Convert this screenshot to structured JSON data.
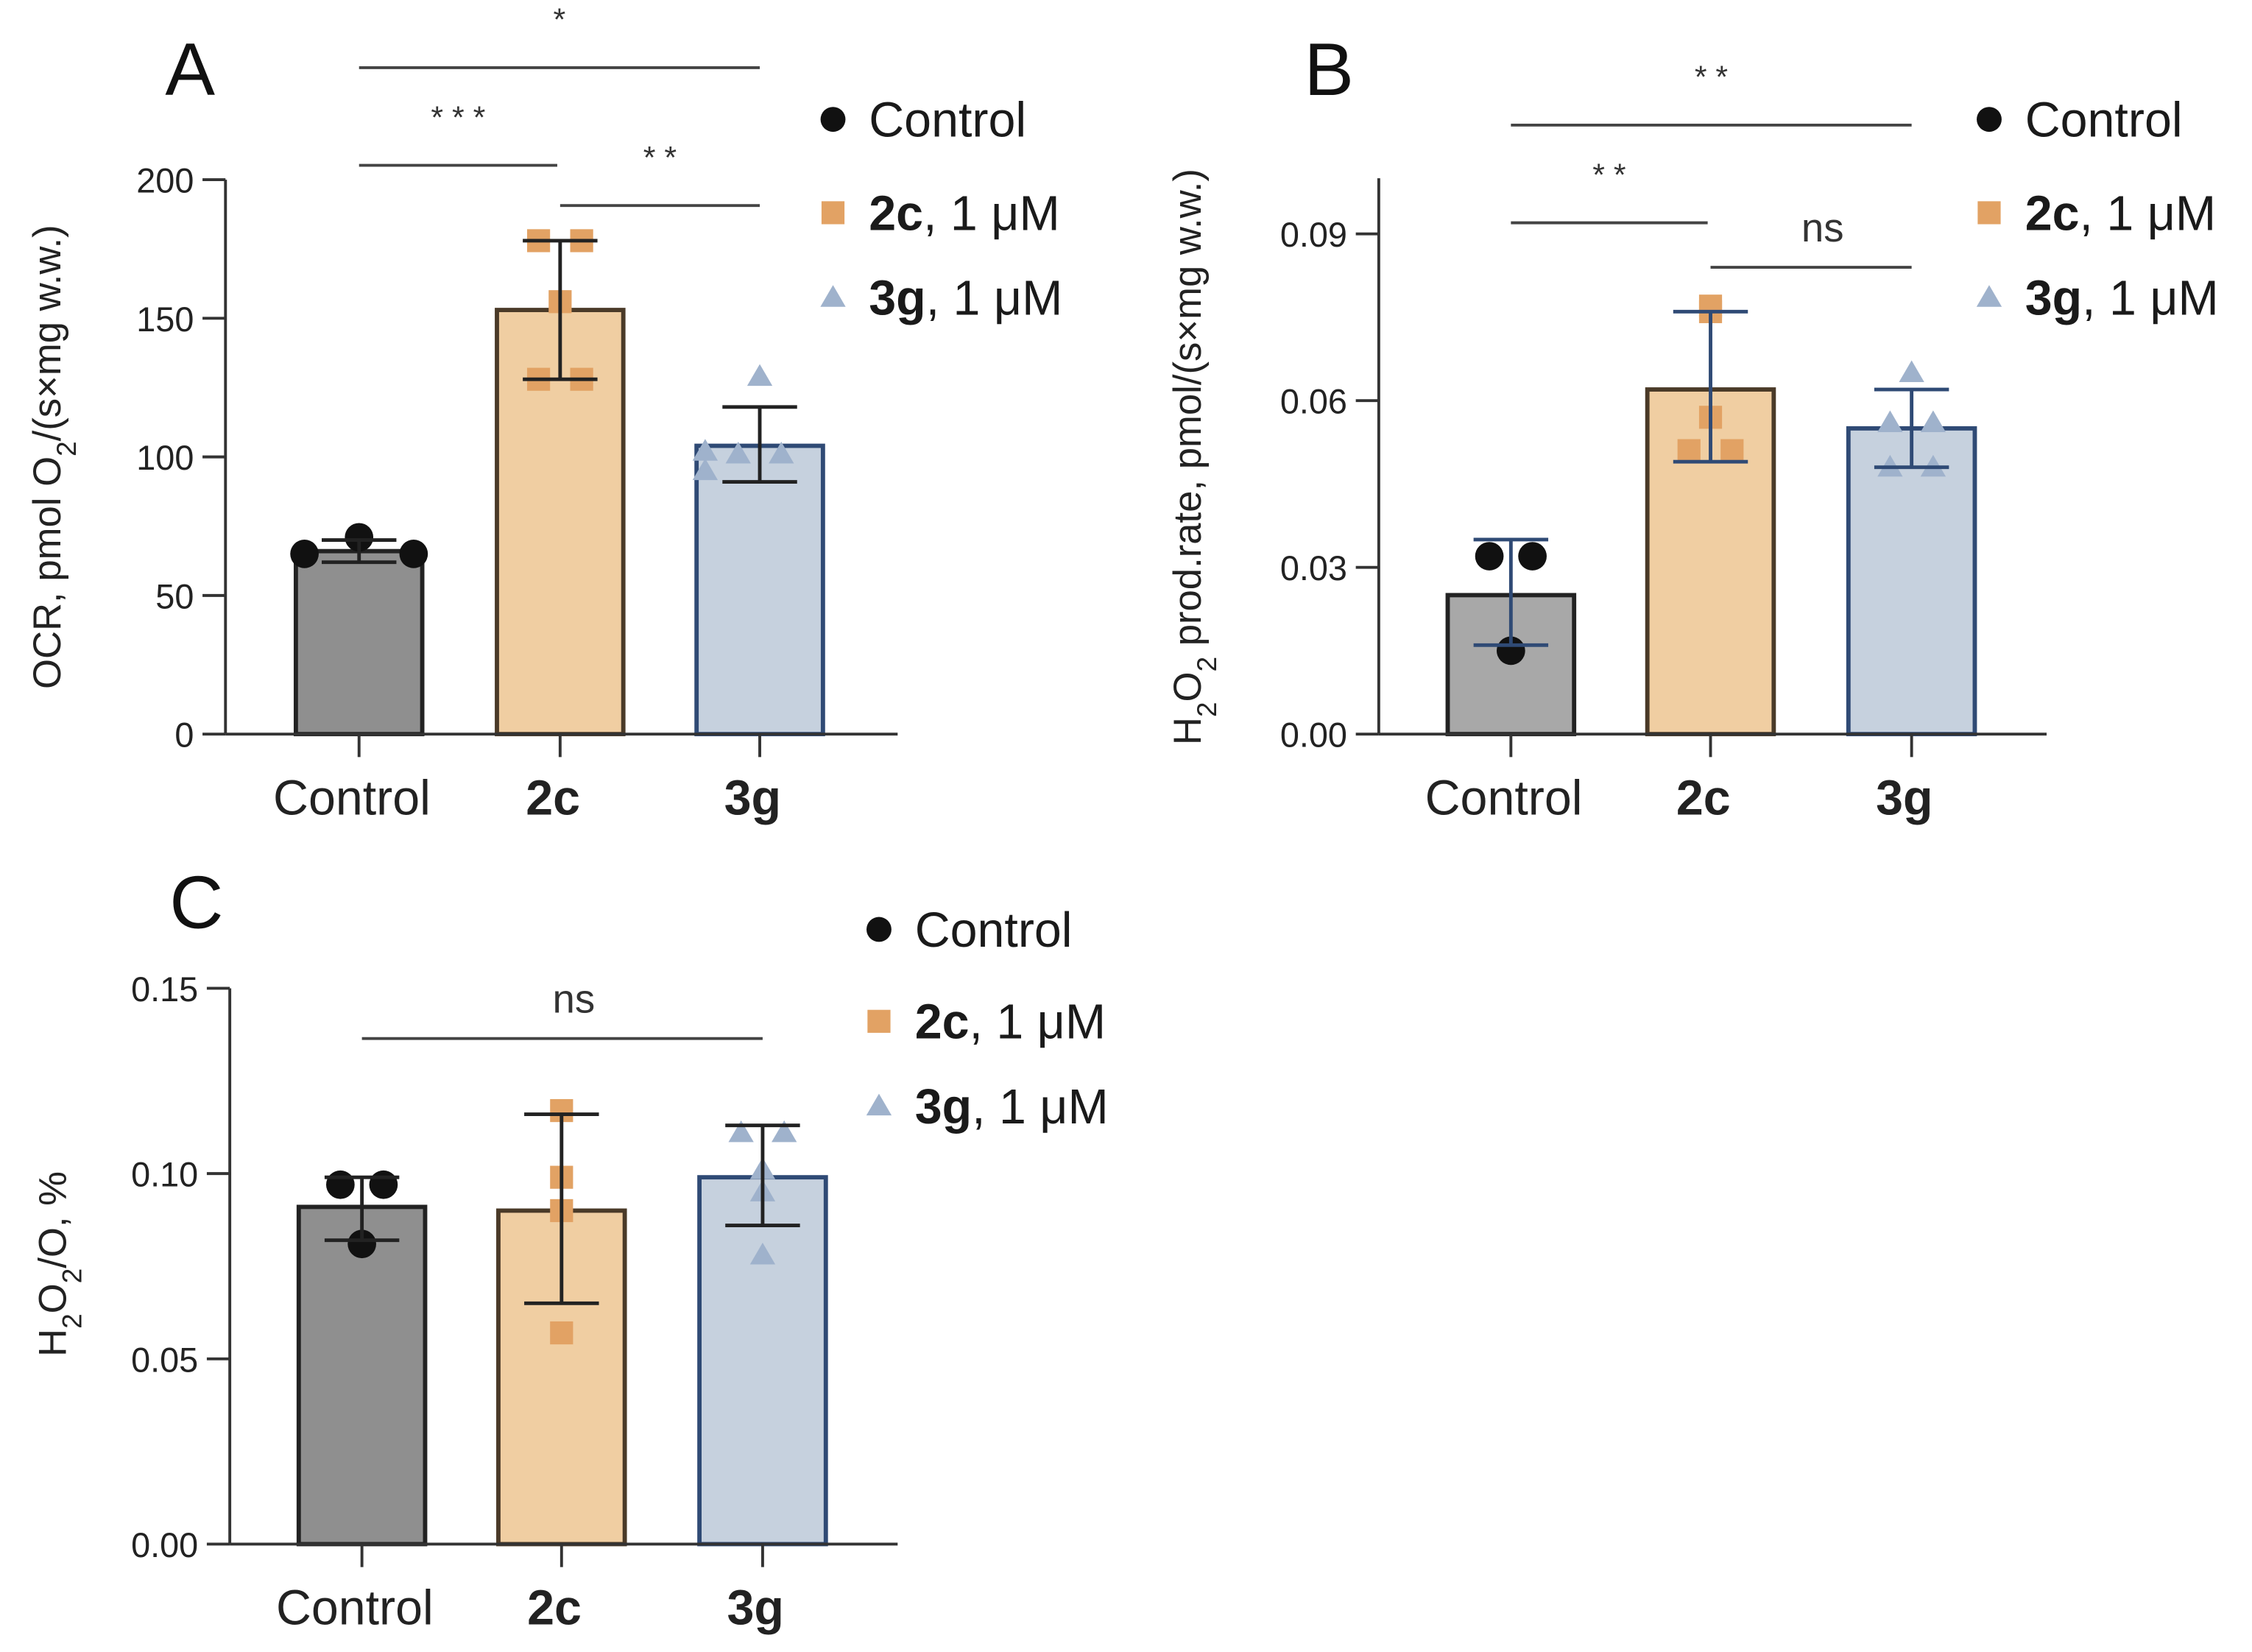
{
  "colors": {
    "control_fill": "#8f8f8f",
    "control_edge": "#222222",
    "control_marker": "#111111",
    "c2_fill": "#f0cea2",
    "c2_edge": "#4a3a28",
    "c2_marker": "#e2a264",
    "g3_fill": "#c6d1de",
    "g3_edge": "#2f4a75",
    "g3_marker": "#9fb2cc",
    "axis": "#333333",
    "sig_line": "#444444"
  },
  "chart_data": [
    {
      "type": "bar",
      "panel_letter": "A",
      "ylabel": {
        "pre": "OCR, pmol O",
        "sub": "2",
        "post": "/(s×mg w.w.)"
      },
      "categories": [
        "Control",
        "2c",
        "3g"
      ],
      "categories_bold": [
        false,
        true,
        true
      ],
      "ylim": [
        0,
        200
      ],
      "yticks": [
        0,
        50,
        100,
        150,
        200
      ],
      "ytick_labels": [
        "0",
        "50",
        "100",
        "150",
        "200"
      ],
      "means": [
        66,
        153,
        104
      ],
      "error": [
        [
          62,
          70
        ],
        [
          128,
          178
        ],
        [
          91,
          118
        ]
      ],
      "error_color": "#222222",
      "points": [
        [
          65,
          71,
          65
        ],
        [
          178,
          178,
          156,
          128,
          128
        ],
        [
          129,
          101,
          102,
          95,
          101
        ]
      ],
      "legend": [
        {
          "marker": "circle",
          "bold": "",
          "text": "Control"
        },
        {
          "marker": "square",
          "bold": "2c",
          "text": ", 1 μM"
        },
        {
          "marker": "triangle",
          "bold": "3g",
          "text": ", 1 μM"
        }
      ],
      "significance": [
        {
          "from": 0,
          "to": 2,
          "label": "*"
        },
        {
          "from": 0,
          "to": 1,
          "label": "* * *"
        },
        {
          "from": 1,
          "to": 2,
          "label": "* *"
        }
      ]
    },
    {
      "type": "bar",
      "panel_letter": "B",
      "ylabel": {
        "pre": "H",
        "sub": "2",
        "mid": "O",
        "sub2": "2",
        "post": " prod.rate, pmol/(s×mg w.w.)"
      },
      "categories": [
        "Control",
        "2c",
        "3g"
      ],
      "categories_bold": [
        false,
        true,
        true
      ],
      "ylim": [
        0,
        0.1
      ],
      "yticks": [
        0,
        0.03,
        0.06,
        0.09
      ],
      "ytick_labels": [
        "0.00",
        "0.03",
        "0.06",
        "0.09"
      ],
      "means": [
        0.025,
        0.062,
        0.055
      ],
      "error": [
        [
          0.016,
          0.035
        ],
        [
          0.049,
          0.076
        ],
        [
          0.048,
          0.062
        ]
      ],
      "error_color": "#2f4a75",
      "points": [
        [
          0.032,
          0.032,
          0.015
        ],
        [
          0.077,
          0.076,
          0.057,
          0.051,
          0.051
        ],
        [
          0.065,
          0.056,
          0.056,
          0.048,
          0.048
        ]
      ],
      "legend": [
        {
          "marker": "circle",
          "bold": "",
          "text": "Control"
        },
        {
          "marker": "square",
          "bold": "2c",
          "text": ", 1 μM"
        },
        {
          "marker": "triangle",
          "bold": "3g",
          "text": ", 1 μM"
        }
      ],
      "significance": [
        {
          "from": 0,
          "to": 2,
          "label": "* *"
        },
        {
          "from": 0,
          "to": 1,
          "label": "* *"
        },
        {
          "from": 1,
          "to": 2,
          "label": "ns"
        }
      ]
    },
    {
      "type": "bar",
      "panel_letter": "C",
      "ylabel": {
        "pre": "H",
        "sub": "2",
        "mid": "O",
        "sub2": "2",
        "post": "/O, %"
      },
      "categories": [
        "Control",
        "2c",
        "3g"
      ],
      "categories_bold": [
        false,
        true,
        true
      ],
      "ylim": [
        0,
        0.15
      ],
      "yticks": [
        0,
        0.05,
        0.1,
        0.15
      ],
      "ytick_labels": [
        "0.00",
        "0.05",
        "0.10",
        "0.15"
      ],
      "means": [
        0.091,
        0.09,
        0.099
      ],
      "error": [
        [
          0.082,
          0.099
        ],
        [
          0.065,
          0.116
        ],
        [
          0.086,
          0.113
        ]
      ],
      "error_color": "#222222",
      "points": [
        [
          0.097,
          0.097,
          0.081
        ],
        [
          0.117,
          0.099,
          0.09,
          0.057
        ],
        [
          0.111,
          0.111,
          0.101,
          0.095,
          0.078
        ]
      ],
      "legend": [
        {
          "marker": "circle",
          "bold": "",
          "text": "Control"
        },
        {
          "marker": "square",
          "bold": "2c",
          "text": ", 1 μM"
        },
        {
          "marker": "triangle",
          "bold": "3g",
          "text": ", 1 μM"
        }
      ],
      "significance": [
        {
          "from": 0,
          "to": 2,
          "label": "ns"
        }
      ]
    }
  ]
}
